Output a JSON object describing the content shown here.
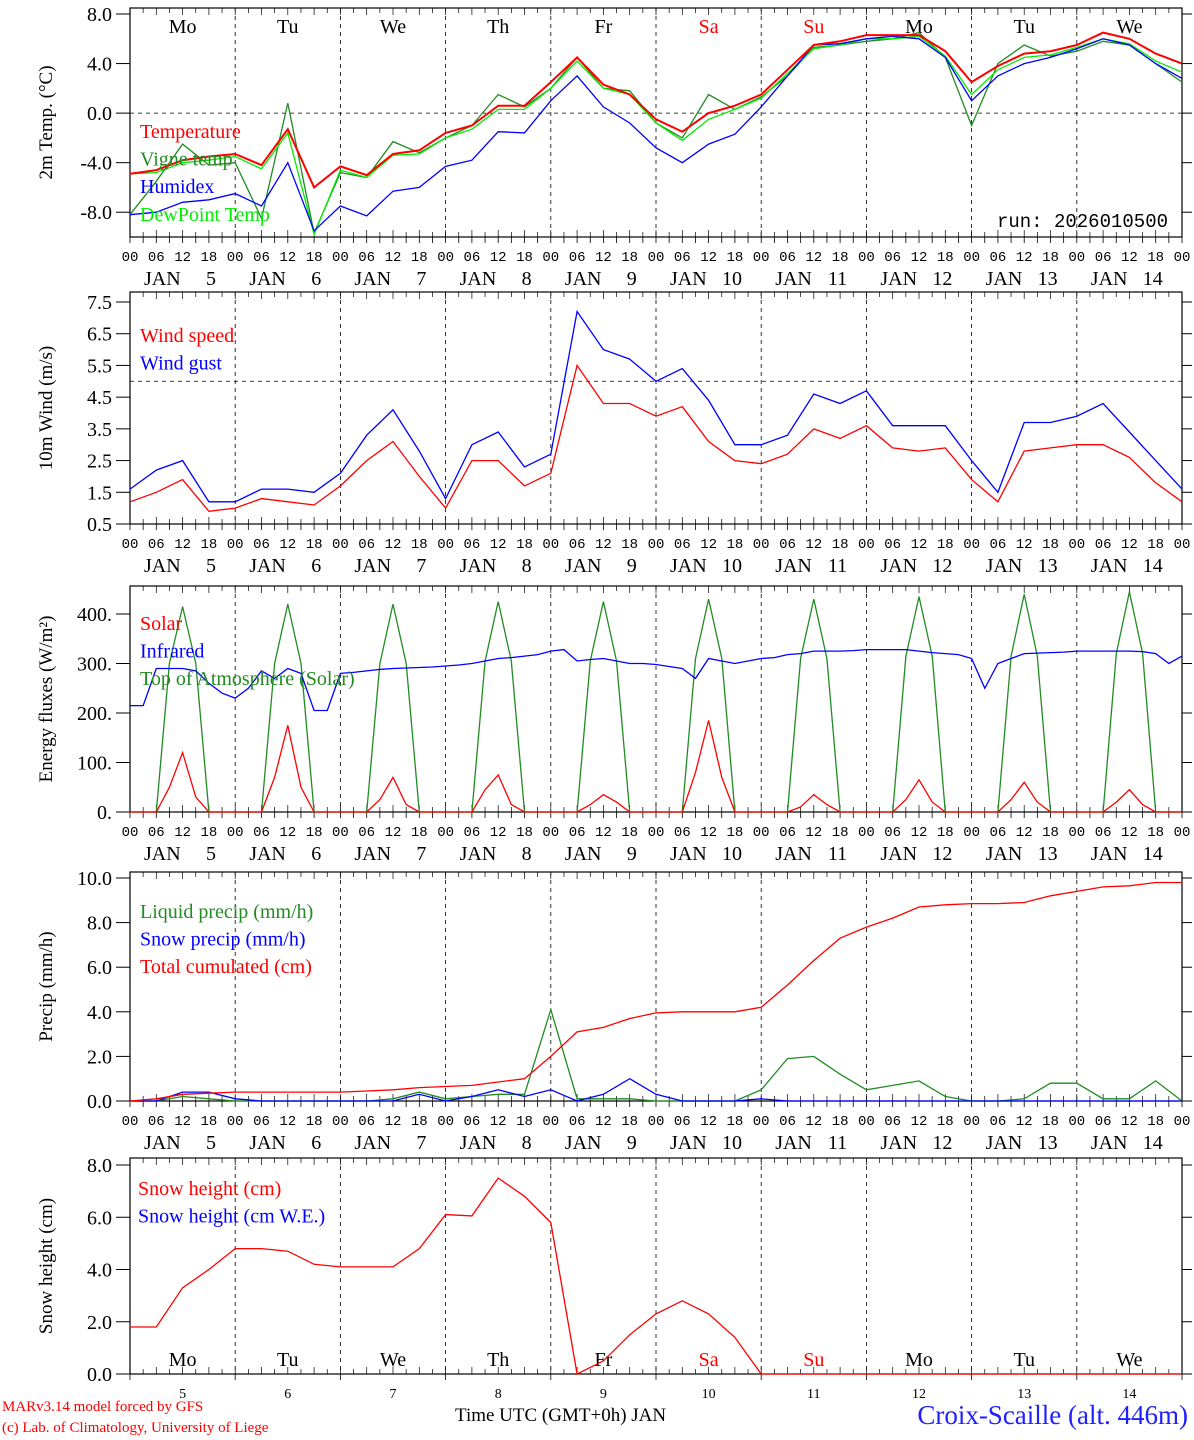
{
  "footer": {
    "model": "MARv3.14 model forced by GFS",
    "credit": "(c) Lab. of Climatology, University of Liege",
    "xlabel": "Time UTC (GMT+0h) JAN",
    "station": "Croix-Scaille (alt. 446m)"
  },
  "weekdays": [
    "Mo",
    "Tu",
    "We",
    "Th",
    "Fr",
    "Sa",
    "Su",
    "Mo",
    "Tu",
    "We"
  ],
  "weekend_color": "#ff0000",
  "hour_labels": [
    "00",
    "06",
    "12",
    "18"
  ],
  "month": "JAN",
  "days": [
    "5",
    "6",
    "7",
    "8",
    "9",
    "10",
    "11",
    "12",
    "13",
    "14"
  ],
  "chart_data": [
    {
      "type": "line",
      "ylabel": "2m Temp. (°C)",
      "ylim": [
        -10,
        8
      ],
      "yticks": [
        "-8.0",
        "-4.0",
        "0.0",
        "4.0",
        "8.0"
      ],
      "ytick_values": [
        -8,
        -4,
        0,
        4,
        8
      ],
      "ref_line": 0,
      "annotation": "run: 2026010500",
      "x_step_hours": 6,
      "series": [
        {
          "name": "Vigne temp",
          "color": "#228b22",
          "values": [
            -8.2,
            -5.5,
            -2.5,
            -4.2,
            -4.0,
            -8.5,
            0.8,
            -9.7,
            -4.8,
            -5.2,
            -2.3,
            -3.2,
            -2.0,
            -1.0,
            1.5,
            0.5,
            2.0,
            4.5,
            2.0,
            1.8,
            -0.8,
            -2.0,
            1.5,
            0.3,
            1.3,
            3.0,
            5.3,
            5.5,
            5.8,
            6.0,
            6.5,
            4.5,
            -1.0,
            4.0,
            5.5,
            4.6,
            5.0,
            5.8,
            5.5,
            4.0,
            2.5
          ]
        },
        {
          "name": "DewPoint Temp",
          "color": "#00ee00",
          "values": [
            -4.9,
            -4.8,
            -4.0,
            -3.8,
            -3.5,
            -4.5,
            -1.6,
            -9.8,
            -4.6,
            -5.2,
            -3.4,
            -3.3,
            -2.0,
            -1.3,
            0.3,
            0.3,
            2.0,
            4.2,
            2.0,
            1.5,
            -0.8,
            -2.2,
            -0.5,
            0.3,
            1.2,
            3.2,
            5.2,
            5.5,
            6.0,
            6.0,
            6.2,
            4.6,
            1.5,
            3.5,
            4.5,
            4.7,
            5.3,
            6.0,
            5.6,
            4.2,
            3.3
          ]
        },
        {
          "name": "Humidex",
          "color": "#0000ff",
          "values": [
            -8.2,
            -8.0,
            -7.2,
            -7.0,
            -6.5,
            -7.5,
            -4.0,
            -9.5,
            -7.5,
            -8.3,
            -6.3,
            -6.0,
            -4.3,
            -3.8,
            -1.5,
            -1.6,
            1.0,
            3.0,
            0.5,
            -0.8,
            -2.8,
            -4.0,
            -2.5,
            -1.7,
            0.5,
            3.0,
            5.5,
            5.6,
            6.0,
            6.2,
            6.0,
            4.5,
            1.0,
            3.0,
            4.0,
            4.5,
            5.2,
            6.0,
            5.5,
            4.0,
            2.8
          ]
        },
        {
          "name": "Temperature",
          "color": "#ff0000",
          "values": [
            -4.9,
            -4.6,
            -3.8,
            -3.5,
            -3.3,
            -4.2,
            -1.3,
            -6.0,
            -4.3,
            -5.0,
            -3.3,
            -3.0,
            -1.6,
            -1.0,
            0.6,
            0.6,
            2.5,
            4.5,
            2.3,
            1.5,
            -0.5,
            -1.5,
            0.0,
            0.6,
            1.5,
            3.5,
            5.5,
            5.8,
            6.3,
            6.3,
            6.3,
            5.0,
            2.5,
            3.8,
            4.8,
            5.0,
            5.5,
            6.5,
            6.0,
            4.8,
            4.0
          ]
        }
      ],
      "legend": [
        "Temperature",
        "Vigne temp",
        "Humidex",
        "DewPoint Temp"
      ]
    },
    {
      "type": "line",
      "ylabel": "10m Wind (m/s)",
      "ylim": [
        0.5,
        7.5
      ],
      "yticks": [
        "0.5",
        "1.5",
        "2.5",
        "3.5",
        "4.5",
        "5.5",
        "6.5",
        "7.5"
      ],
      "ytick_values": [
        0.5,
        1.5,
        2.5,
        3.5,
        4.5,
        5.5,
        6.5,
        7.5
      ],
      "ref_line": 5.0,
      "x_step_hours": 6,
      "series": [
        {
          "name": "Wind gust",
          "color": "#0000ff",
          "values": [
            1.6,
            2.2,
            2.5,
            1.2,
            1.2,
            1.6,
            1.6,
            1.5,
            2.1,
            3.3,
            4.1,
            2.8,
            1.3,
            3.0,
            3.4,
            2.3,
            2.7,
            7.2,
            6.0,
            5.7,
            5.0,
            5.4,
            4.4,
            3.0,
            3.0,
            3.3,
            4.6,
            4.3,
            4.7,
            3.6,
            3.6,
            3.6,
            2.5,
            1.5,
            3.7,
            3.7,
            3.9,
            4.3,
            3.4,
            2.5,
            1.6
          ]
        },
        {
          "name": "Wind speed",
          "color": "#ff0000",
          "values": [
            1.2,
            1.5,
            1.9,
            0.9,
            1.0,
            1.3,
            1.2,
            1.1,
            1.7,
            2.5,
            3.1,
            2.0,
            1.0,
            2.5,
            2.5,
            1.7,
            2.1,
            5.5,
            4.3,
            4.3,
            3.9,
            4.2,
            3.1,
            2.5,
            2.4,
            2.7,
            3.5,
            3.2,
            3.6,
            2.9,
            2.8,
            2.9,
            1.9,
            1.2,
            2.8,
            2.9,
            3.0,
            3.0,
            2.6,
            1.8,
            1.2
          ]
        }
      ],
      "legend": [
        "Wind speed",
        "Wind gust"
      ]
    },
    {
      "type": "line",
      "ylabel": "Energy fluxes (W/m²)",
      "ylim": [
        0,
        448
      ],
      "yticks": [
        "0.",
        "100.",
        "200.",
        "300.",
        "400."
      ],
      "ytick_values": [
        0,
        100,
        200,
        300,
        400
      ],
      "x_step_hours": 3,
      "series": [
        {
          "name": "Top of Atmosphere (Solar)",
          "color": "#228b22",
          "values": [
            0,
            0,
            0,
            300,
            415,
            300,
            0,
            0,
            0,
            0,
            0,
            300,
            420,
            300,
            0,
            0,
            0,
            0,
            0,
            300,
            420,
            300,
            0,
            0,
            0,
            0,
            0,
            305,
            425,
            305,
            0,
            0,
            0,
            0,
            0,
            305,
            425,
            305,
            0,
            0,
            0,
            0,
            0,
            310,
            430,
            310,
            0,
            0,
            0,
            0,
            0,
            310,
            430,
            310,
            0,
            0,
            0,
            0,
            0,
            315,
            435,
            315,
            0,
            0,
            0,
            0,
            0,
            315,
            440,
            315,
            0,
            0,
            0,
            0,
            0,
            320,
            445,
            320,
            0,
            0,
            0
          ]
        },
        {
          "name": "Infrared",
          "color": "#0000ff",
          "values": [
            215,
            215,
            290,
            290,
            290,
            285,
            260,
            240,
            230,
            250,
            285,
            270,
            290,
            280,
            205,
            205,
            280,
            282,
            285,
            288,
            290,
            291,
            292,
            293,
            295,
            297,
            300,
            305,
            310,
            312,
            315,
            318,
            325,
            328,
            305,
            308,
            310,
            305,
            300,
            300,
            298,
            294,
            290,
            270,
            310,
            305,
            300,
            305,
            310,
            312,
            318,
            320,
            325,
            325,
            325,
            326,
            328,
            328,
            328,
            328,
            325,
            322,
            320,
            318,
            310,
            250,
            300,
            310,
            320,
            321,
            322,
            323,
            325,
            325,
            325,
            325,
            325,
            324,
            320,
            300,
            315
          ]
        },
        {
          "name": "Solar",
          "color": "#ff0000",
          "values": [
            0,
            0,
            0,
            50,
            120,
            30,
            0,
            0,
            0,
            0,
            0,
            70,
            175,
            50,
            0,
            0,
            0,
            0,
            0,
            25,
            70,
            15,
            0,
            0,
            0,
            0,
            0,
            45,
            75,
            15,
            0,
            0,
            0,
            0,
            0,
            15,
            35,
            20,
            0,
            0,
            0,
            0,
            0,
            80,
            185,
            70,
            0,
            0,
            0,
            0,
            0,
            10,
            35,
            15,
            0,
            0,
            0,
            0,
            0,
            25,
            65,
            20,
            0,
            0,
            0,
            0,
            0,
            25,
            60,
            20,
            0,
            0,
            0,
            0,
            0,
            20,
            45,
            15,
            0,
            0,
            0
          ]
        }
      ],
      "legend": [
        "Solar",
        "Infrared",
        "Top of Atmosphere (Solar)"
      ]
    },
    {
      "type": "line",
      "ylabel": "Precip (mm/h)",
      "ylim": [
        0,
        10
      ],
      "yticks": [
        "0.0",
        "2.0",
        "4.0",
        "6.0",
        "8.0",
        "10.0"
      ],
      "ytick_values": [
        0,
        2,
        4,
        6,
        8,
        10
      ],
      "x_step_hours": 6,
      "series": [
        {
          "name": "Liquid precip (mm/h)",
          "color": "#228b22",
          "values": [
            0,
            0,
            0.2,
            0.1,
            0,
            0,
            0,
            0,
            0,
            0,
            0.1,
            0.4,
            0.1,
            0.2,
            0.3,
            0.3,
            4.1,
            0.1,
            0.1,
            0.1,
            0,
            0,
            0,
            0,
            0.5,
            1.9,
            2.0,
            1.2,
            0.5,
            0.7,
            0.9,
            0.2,
            0,
            0,
            0.1,
            0.8,
            0.8,
            0.1,
            0.1,
            0.9,
            0
          ]
        },
        {
          "name": "Snow precip (mm/h)",
          "color": "#0000ff",
          "values": [
            0,
            0,
            0.4,
            0.4,
            0.1,
            0,
            0,
            0,
            0,
            0,
            0,
            0.3,
            0,
            0.2,
            0.5,
            0.2,
            0.5,
            0,
            0.3,
            1.0,
            0.3,
            0,
            0,
            0,
            0.1,
            0,
            0,
            0,
            0,
            0,
            0,
            0,
            0,
            0,
            0,
            0,
            0,
            0,
            0,
            0,
            0
          ]
        },
        {
          "name": "Total cumulated (cm)",
          "color": "#ff0000",
          "values": [
            0,
            0.1,
            0.3,
            0.35,
            0.4,
            0.4,
            0.4,
            0.4,
            0.4,
            0.45,
            0.5,
            0.6,
            0.65,
            0.7,
            0.85,
            1.0,
            2.0,
            3.1,
            3.3,
            3.7,
            3.95,
            4.0,
            4.0,
            4.0,
            4.2,
            5.2,
            6.3,
            7.3,
            7.8,
            8.2,
            8.7,
            8.8,
            8.85,
            8.85,
            8.9,
            9.2,
            9.4,
            9.6,
            9.65,
            9.8,
            9.8
          ]
        }
      ],
      "legend": [
        "Liquid precip (mm/h)",
        "Snow precip (mm/h)",
        "Total cumulated (cm)"
      ]
    },
    {
      "type": "line",
      "ylabel": "Snow height (cm)",
      "ylim": [
        0,
        8
      ],
      "yticks": [
        "0.0",
        "2.0",
        "4.0",
        "6.0",
        "8.0"
      ],
      "ytick_values": [
        0,
        2,
        4,
        6,
        8
      ],
      "x_step_hours": 6,
      "series": [
        {
          "name": "Snow height (cm)",
          "color": "#ff0000",
          "values": [
            1.8,
            1.8,
            3.3,
            4.0,
            4.8,
            4.8,
            4.7,
            4.2,
            4.1,
            4.1,
            4.1,
            4.8,
            6.1,
            6.05,
            7.5,
            6.8,
            5.8,
            0,
            0.5,
            1.5,
            2.3,
            2.8,
            2.3,
            1.4,
            0,
            0,
            0,
            0,
            0,
            0,
            0,
            0,
            0,
            0,
            0,
            0,
            0,
            0,
            0,
            0,
            0
          ]
        }
      ],
      "legend": [
        "Snow height (cm)",
        "Snow height (cm W.E.)"
      ],
      "legend_colors": [
        "#ff0000",
        "#0000ff"
      ]
    }
  ]
}
